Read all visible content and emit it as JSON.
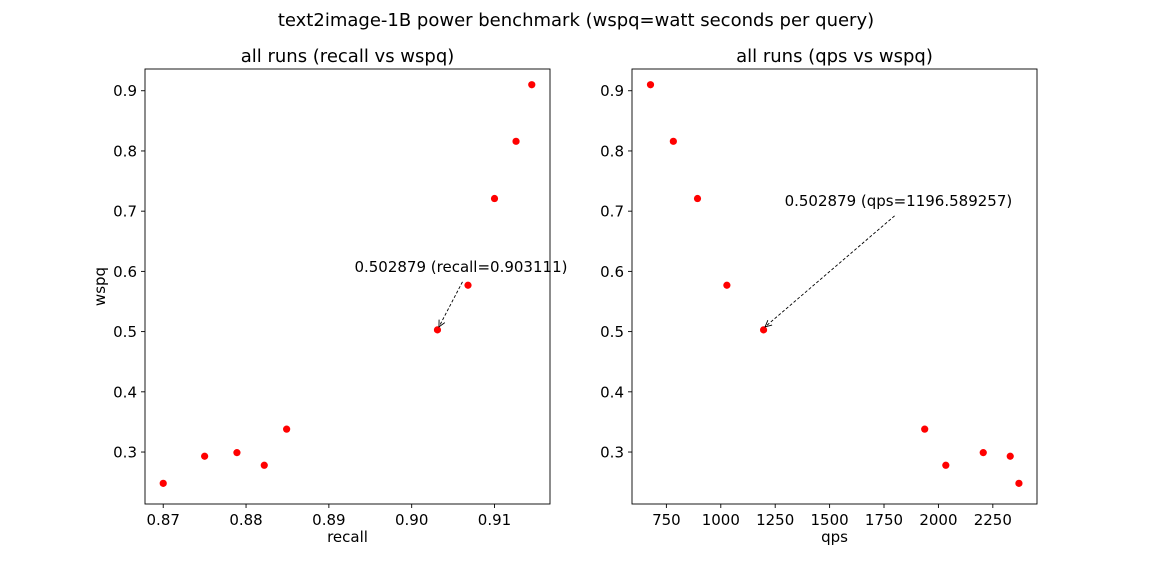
{
  "figure": {
    "suptitle": "text2image-1B power benchmark (wspq=watt seconds per query)"
  },
  "colors": {
    "marker": "#ff0000",
    "axes": "#000000"
  },
  "chart_data": [
    {
      "type": "scatter",
      "title": "all runs (recall vs wspq)",
      "xlabel": "recall",
      "ylabel": "wspq",
      "xlim": [
        0.8678,
        0.9167
      ],
      "ylim": [
        0.2137,
        0.9361
      ],
      "xticks": [
        0.87,
        0.88,
        0.89,
        0.9,
        0.91
      ],
      "xtick_labels": [
        "0.87",
        "0.88",
        "0.89",
        "0.90",
        "0.91"
      ],
      "yticks": [
        0.3,
        0.4,
        0.5,
        0.6,
        0.7,
        0.8,
        0.9
      ],
      "ytick_labels": [
        "0.3",
        "0.4",
        "0.5",
        "0.6",
        "0.7",
        "0.8",
        "0.9"
      ],
      "grid": false,
      "points": [
        {
          "x": 0.87,
          "y": 0.248
        },
        {
          "x": 0.875,
          "y": 0.293
        },
        {
          "x": 0.8789,
          "y": 0.299
        },
        {
          "x": 0.8822,
          "y": 0.278
        },
        {
          "x": 0.8849,
          "y": 0.338
        },
        {
          "x": 0.903111,
          "y": 0.502879
        },
        {
          "x": 0.9068,
          "y": 0.577
        },
        {
          "x": 0.91,
          "y": 0.721
        },
        {
          "x": 0.9126,
          "y": 0.816
        },
        {
          "x": 0.9145,
          "y": 0.91
        }
      ],
      "annotation": {
        "text": "0.502879 (recall=0.903111)",
        "x": 0.903111,
        "y": 0.502879
      }
    },
    {
      "type": "scatter",
      "title": "all runs (qps vs wspq)",
      "xlabel": "qps",
      "ylabel": "",
      "xlim": [
        592,
        2453
      ],
      "ylim": [
        0.2137,
        0.9361
      ],
      "xticks": [
        750,
        1000,
        1250,
        1500,
        1750,
        2000,
        2250
      ],
      "xtick_labels": [
        "750",
        "1000",
        "1250",
        "1500",
        "1750",
        "2000",
        "2250"
      ],
      "yticks": [
        0.3,
        0.4,
        0.5,
        0.6,
        0.7,
        0.8,
        0.9
      ],
      "ytick_labels": [
        "0.3",
        "0.4",
        "0.5",
        "0.6",
        "0.7",
        "0.8",
        "0.9"
      ],
      "grid": false,
      "points": [
        {
          "x": 677,
          "y": 0.91
        },
        {
          "x": 782,
          "y": 0.816
        },
        {
          "x": 893,
          "y": 0.721
        },
        {
          "x": 1028,
          "y": 0.577
        },
        {
          "x": 1196.589257,
          "y": 0.502879
        },
        {
          "x": 1937,
          "y": 0.338
        },
        {
          "x": 2034,
          "y": 0.278
        },
        {
          "x": 2206,
          "y": 0.299
        },
        {
          "x": 2330,
          "y": 0.293
        },
        {
          "x": 2370,
          "y": 0.248
        }
      ],
      "annotation": {
        "text": "0.502879 (qps=1196.589257)",
        "x": 1196.589257,
        "y": 0.502879
      }
    }
  ]
}
